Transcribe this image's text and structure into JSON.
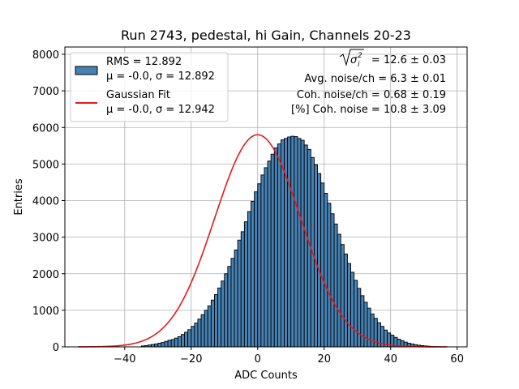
{
  "chart_data": {
    "type": "bar",
    "title": "Run 2743, pedestal, hi Gain, Channels 20-23",
    "xlabel": "ADC Counts",
    "ylabel": "Entries",
    "xlim": [
      -58,
      63
    ],
    "ylim": [
      0,
      8200
    ],
    "xticks": [
      -40,
      -20,
      0,
      20,
      40,
      60
    ],
    "yticks": [
      0,
      1000,
      2000,
      3000,
      4000,
      5000,
      6000,
      7000,
      8000
    ],
    "grid": true,
    "histogram": {
      "name": "RMS = 12.892",
      "mu_label": "μ = -0.0, σ = 12.892",
      "bin_start": -35,
      "bin_width": 1,
      "color": "#4682b4",
      "counts": [
        25,
        35,
        50,
        65,
        80,
        100,
        120,
        150,
        180,
        200,
        240,
        280,
        340,
        400,
        470,
        560,
        650,
        760,
        880,
        1000,
        1120,
        1280,
        1430,
        1610,
        1800,
        2000,
        2200,
        2420,
        2650,
        2920,
        3150,
        3420,
        3700,
        3980,
        4240,
        4460,
        4700,
        4900,
        5080,
        5270,
        5440,
        5550,
        5660,
        5700,
        5740,
        5760,
        5750,
        5700,
        5650,
        5520,
        5400,
        5180,
        4980,
        4740,
        4480,
        4200,
        3930,
        3640,
        3360,
        3080,
        2800,
        2540,
        2280,
        2040,
        1820,
        1600,
        1400,
        1220,
        1060,
        900,
        780,
        660,
        560,
        460,
        380,
        320,
        260,
        210,
        170,
        130,
        100,
        80,
        60,
        45,
        35,
        25,
        18,
        12,
        8,
        5
      ]
    },
    "fit": {
      "name": "Gaussian Fit",
      "mu_label": "μ = -0.0, σ = 12.942",
      "mu": 0.0,
      "sigma": 12.942,
      "amplitude": 5800,
      "x_range": [
        -54,
        57
      ],
      "color": "#e31a1c"
    },
    "annotations": {
      "total_noise_value": "= 12.6 ± 0.03",
      "avg_noise": "Avg. noise/ch = 6.3 ± 0.01",
      "coh_noise": "Coh. noise/ch = 0.68 ± 0.19",
      "coh_percent": "[%] Coh. noise = 10.8 ± 3.09"
    }
  }
}
